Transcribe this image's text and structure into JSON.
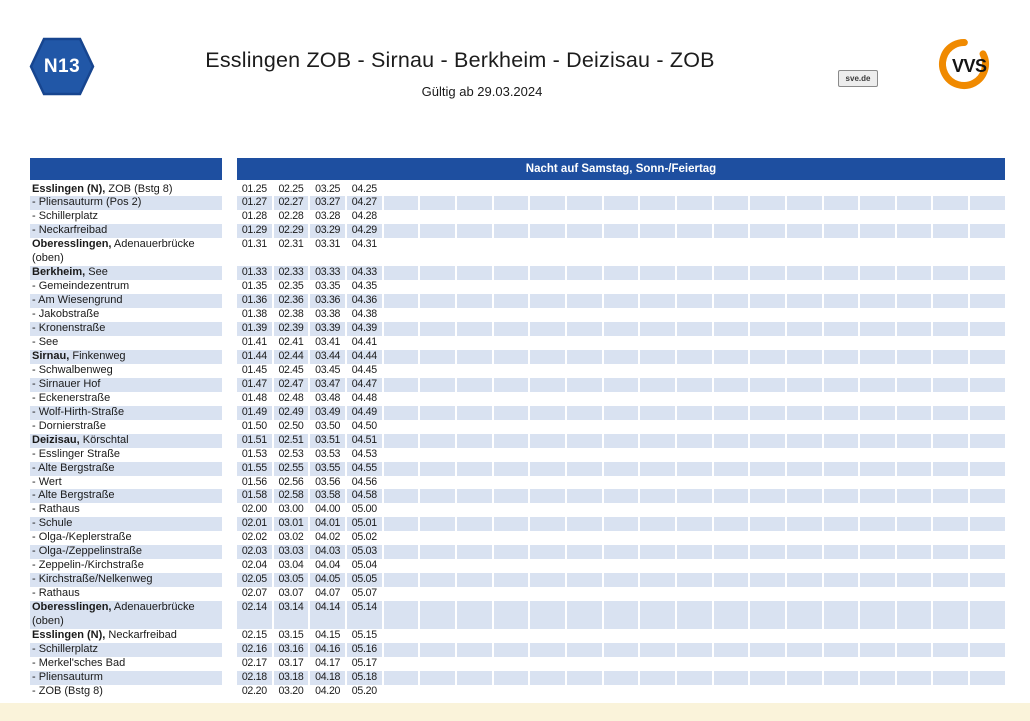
{
  "header": {
    "line_number": "N13",
    "title": "Esslingen ZOB - Sirnau - Berkheim - Deizisau - ZOB",
    "validity": "Gültig ab 29.03.2024",
    "operator_logo_text": "sve.de",
    "brand_logo_text": "VVS"
  },
  "timetable": {
    "service_header": "Nacht auf Samstag, Sonn-/Feiertag",
    "grid_columns": 21,
    "rows": [
      {
        "name_bold": "Esslingen (N),",
        "name": " ZOB (Bstg 8)",
        "name2": "",
        "times": [
          "01.25",
          "02.25",
          "03.25",
          "04.25"
        ]
      },
      {
        "name_bold": "",
        "name": "- Pliensauturm (Pos 2)",
        "name2": "",
        "times": [
          "01.27",
          "02.27",
          "03.27",
          "04.27"
        ]
      },
      {
        "name_bold": "",
        "name": "- Schillerplatz",
        "name2": "",
        "times": [
          "01.28",
          "02.28",
          "03.28",
          "04.28"
        ]
      },
      {
        "name_bold": "",
        "name": "- Neckarfreibad",
        "name2": "",
        "times": [
          "01.29",
          "02.29",
          "03.29",
          "04.29"
        ]
      },
      {
        "name_bold": "Oberesslingen,",
        "name": " Adenauerbrücke",
        "name2": "(oben)",
        "times": [
          "01.31",
          "02.31",
          "03.31",
          "04.31"
        ]
      },
      {
        "name_bold": "Berkheim,",
        "name": " See",
        "name2": "",
        "times": [
          "01.33",
          "02.33",
          "03.33",
          "04.33"
        ]
      },
      {
        "name_bold": "",
        "name": "- Gemeindezentrum",
        "name2": "",
        "times": [
          "01.35",
          "02.35",
          "03.35",
          "04.35"
        ]
      },
      {
        "name_bold": "",
        "name": "- Am Wiesengrund",
        "name2": "",
        "times": [
          "01.36",
          "02.36",
          "03.36",
          "04.36"
        ]
      },
      {
        "name_bold": "",
        "name": "- Jakobstraße",
        "name2": "",
        "times": [
          "01.38",
          "02.38",
          "03.38",
          "04.38"
        ]
      },
      {
        "name_bold": "",
        "name": "- Kronenstraße",
        "name2": "",
        "times": [
          "01.39",
          "02.39",
          "03.39",
          "04.39"
        ]
      },
      {
        "name_bold": "",
        "name": "- See",
        "name2": "",
        "times": [
          "01.41",
          "02.41",
          "03.41",
          "04.41"
        ]
      },
      {
        "name_bold": "Sirnau,",
        "name": " Finkenweg",
        "name2": "",
        "times": [
          "01.44",
          "02.44",
          "03.44",
          "04.44"
        ]
      },
      {
        "name_bold": "",
        "name": "- Schwalbenweg",
        "name2": "",
        "times": [
          "01.45",
          "02.45",
          "03.45",
          "04.45"
        ]
      },
      {
        "name_bold": "",
        "name": "- Sirnauer Hof",
        "name2": "",
        "times": [
          "01.47",
          "02.47",
          "03.47",
          "04.47"
        ]
      },
      {
        "name_bold": "",
        "name": "- Eckenerstraße",
        "name2": "",
        "times": [
          "01.48",
          "02.48",
          "03.48",
          "04.48"
        ]
      },
      {
        "name_bold": "",
        "name": "- Wolf-Hirth-Straße",
        "name2": "",
        "times": [
          "01.49",
          "02.49",
          "03.49",
          "04.49"
        ]
      },
      {
        "name_bold": "",
        "name": "- Dornierstraße",
        "name2": "",
        "times": [
          "01.50",
          "02.50",
          "03.50",
          "04.50"
        ]
      },
      {
        "name_bold": "Deizisau,",
        "name": " Körschtal",
        "name2": "",
        "times": [
          "01.51",
          "02.51",
          "03.51",
          "04.51"
        ]
      },
      {
        "name_bold": "",
        "name": "- Esslinger Straße",
        "name2": "",
        "times": [
          "01.53",
          "02.53",
          "03.53",
          "04.53"
        ]
      },
      {
        "name_bold": "",
        "name": "- Alte Bergstraße",
        "name2": "",
        "times": [
          "01.55",
          "02.55",
          "03.55",
          "04.55"
        ]
      },
      {
        "name_bold": "",
        "name": "- Wert",
        "name2": "",
        "times": [
          "01.56",
          "02.56",
          "03.56",
          "04.56"
        ]
      },
      {
        "name_bold": "",
        "name": "- Alte Bergstraße",
        "name2": "",
        "times": [
          "01.58",
          "02.58",
          "03.58",
          "04.58"
        ]
      },
      {
        "name_bold": "",
        "name": "- Rathaus",
        "name2": "",
        "times": [
          "02.00",
          "03.00",
          "04.00",
          "05.00"
        ]
      },
      {
        "name_bold": "",
        "name": "- Schule",
        "name2": "",
        "times": [
          "02.01",
          "03.01",
          "04.01",
          "05.01"
        ]
      },
      {
        "name_bold": "",
        "name": "- Olga-/Keplerstraße",
        "name2": "",
        "times": [
          "02.02",
          "03.02",
          "04.02",
          "05.02"
        ]
      },
      {
        "name_bold": "",
        "name": "- Olga-/Zeppelinstraße",
        "name2": "",
        "times": [
          "02.03",
          "03.03",
          "04.03",
          "05.03"
        ]
      },
      {
        "name_bold": "",
        "name": "- Zeppelin-/Kirchstraße",
        "name2": "",
        "times": [
          "02.04",
          "03.04",
          "04.04",
          "05.04"
        ]
      },
      {
        "name_bold": "",
        "name": "- Kirchstraße/Nelkenweg",
        "name2": "",
        "times": [
          "02.05",
          "03.05",
          "04.05",
          "05.05"
        ]
      },
      {
        "name_bold": "",
        "name": "- Rathaus",
        "name2": "",
        "times": [
          "02.07",
          "03.07",
          "04.07",
          "05.07"
        ]
      },
      {
        "name_bold": "Oberesslingen,",
        "name": " Adenauerbrücke",
        "name2": "(oben)",
        "times": [
          "02.14",
          "03.14",
          "04.14",
          "05.14"
        ]
      },
      {
        "name_bold": "Esslingen (N),",
        "name": " Neckarfreibad",
        "name2": "",
        "times": [
          "02.15",
          "03.15",
          "04.15",
          "05.15"
        ]
      },
      {
        "name_bold": "",
        "name": "- Schillerplatz",
        "name2": "",
        "times": [
          "02.16",
          "03.16",
          "04.16",
          "05.16"
        ]
      },
      {
        "name_bold": "",
        "name": "- Merkel'sches Bad",
        "name2": "",
        "times": [
          "02.17",
          "03.17",
          "04.17",
          "05.17"
        ]
      },
      {
        "name_bold": "",
        "name": "- Pliensauturm",
        "name2": "",
        "times": [
          "02.18",
          "03.18",
          "04.18",
          "05.18"
        ]
      },
      {
        "name_bold": "",
        "name": "- ZOB (Bstg 8)",
        "name2": "",
        "times": [
          "02.20",
          "03.20",
          "04.20",
          "05.20"
        ]
      }
    ]
  },
  "colors": {
    "header_blue": "#1e4fa0",
    "stripe_blue": "#d9e2f1",
    "badge_blue": "#2157a7",
    "badge_border": "#17458f",
    "vvs_orange": "#f08a00",
    "footer_cream": "#faf3da",
    "text": "#1a1a1a"
  }
}
